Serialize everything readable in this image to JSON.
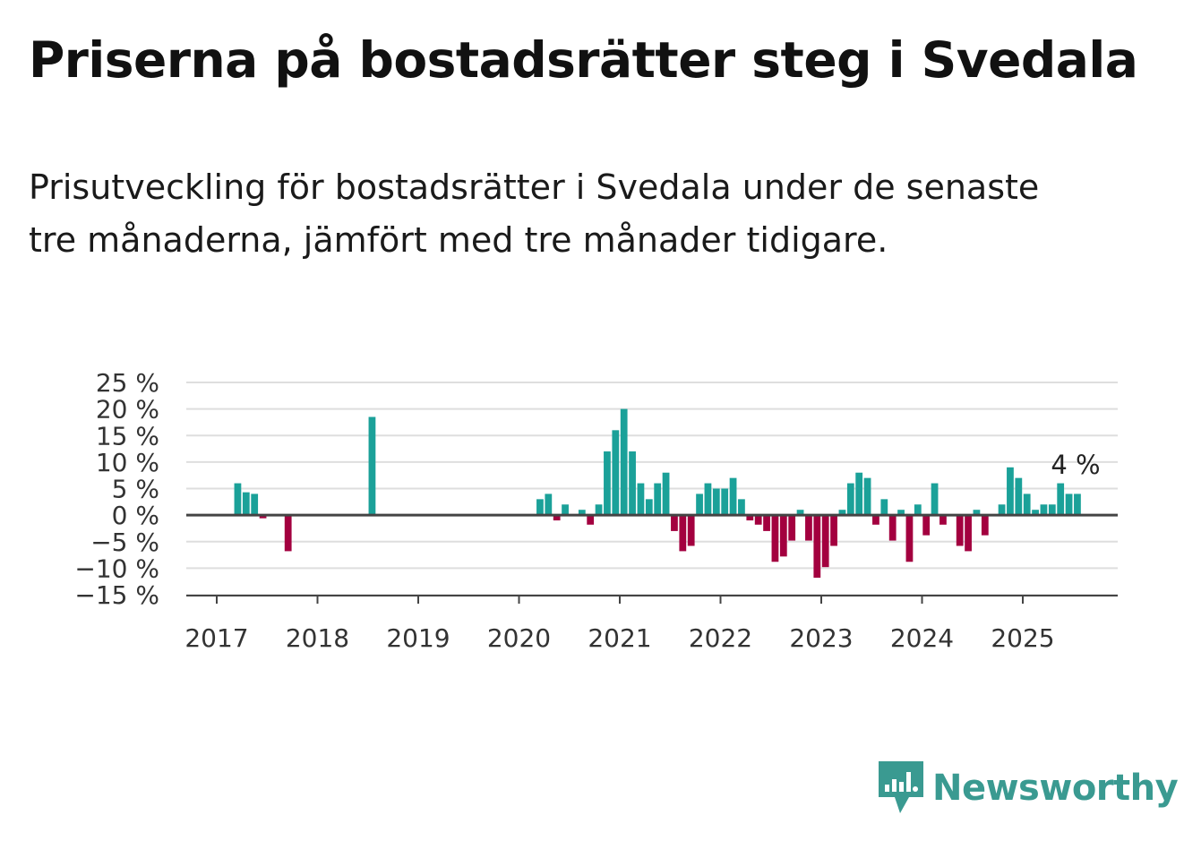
{
  "title": "Priserna på bostadsrätter steg i Svedala",
  "subtitle": "Prisutveckling för bostadsrätter i Svedala under de senaste tre månaderna, jämfört med tre månader tidigare.",
  "brand": {
    "name": "Newsworthy",
    "color": "#3a9a91",
    "icon": "bar-chart-speech-bubble-icon"
  },
  "chart_data": {
    "type": "bar",
    "ylim": [
      -15,
      25
    ],
    "yticks": [
      -15,
      -10,
      -5,
      0,
      5,
      10,
      15,
      20,
      25
    ],
    "ytick_labels": [
      "−15 %",
      "−10 %",
      "−5 %",
      "0 %",
      "5 %",
      "10 %",
      "15 %",
      "20 %",
      "25 %"
    ],
    "xticks": [
      "2017",
      "2018",
      "2019",
      "2020",
      "2021",
      "2022",
      "2023",
      "2024",
      "2025"
    ],
    "grid": true,
    "colors": {
      "positive": "#1ba199",
      "negative": "#a3003f"
    },
    "annotation": {
      "label": "4 %",
      "date": "2025-07"
    },
    "series": [
      {
        "x": [
          "2017-01",
          "2017-02",
          "2017-03",
          "2017-04",
          "2017-05",
          "2017-06",
          "2017-07",
          "2017-08",
          "2017-09",
          "2017-10",
          "2017-11",
          "2017-12",
          "2018-01",
          "2018-02",
          "2018-03",
          "2018-04",
          "2018-05",
          "2018-06",
          "2018-07",
          "2018-08",
          "2018-09",
          "2018-10",
          "2018-11",
          "2018-12",
          "2019-01",
          "2019-02",
          "2019-03",
          "2019-04",
          "2019-05",
          "2019-06",
          "2019-07",
          "2019-08",
          "2019-09",
          "2019-10",
          "2019-11",
          "2019-12",
          "2020-01",
          "2020-02",
          "2020-03",
          "2020-04",
          "2020-05",
          "2020-06",
          "2020-07",
          "2020-08",
          "2020-09",
          "2020-10",
          "2020-11",
          "2020-12",
          "2021-01",
          "2021-02",
          "2021-03",
          "2021-04",
          "2021-05",
          "2021-06",
          "2021-07",
          "2021-08",
          "2021-09",
          "2021-10",
          "2021-11",
          "2021-12",
          "2022-01",
          "2022-02",
          "2022-03",
          "2022-04",
          "2022-05",
          "2022-06",
          "2022-07",
          "2022-08",
          "2022-09",
          "2022-10",
          "2022-11",
          "2022-12",
          "2023-01",
          "2023-02",
          "2023-03",
          "2023-04",
          "2023-05",
          "2023-06",
          "2023-07",
          "2023-08",
          "2023-09",
          "2023-10",
          "2023-11",
          "2023-12",
          "2024-01",
          "2024-02",
          "2024-03",
          "2024-04",
          "2024-05",
          "2024-06",
          "2024-07",
          "2024-08",
          "2024-09",
          "2024-10",
          "2024-11",
          "2024-12",
          "2025-01",
          "2025-02",
          "2025-03",
          "2025-04",
          "2025-05",
          "2025-06",
          "2025-07"
        ],
        "values": [
          null,
          null,
          6,
          4.3,
          4,
          -0.6,
          null,
          null,
          -6.8,
          null,
          null,
          null,
          null,
          null,
          null,
          null,
          null,
          null,
          18.5,
          null,
          null,
          null,
          null,
          null,
          null,
          null,
          null,
          null,
          null,
          null,
          null,
          null,
          null,
          null,
          null,
          null,
          null,
          null,
          3,
          4,
          -1,
          2,
          null,
          1,
          -1.8,
          2,
          12,
          16,
          20,
          12,
          6,
          3,
          6,
          8,
          -3,
          -6.8,
          -5.8,
          4,
          6,
          5,
          5,
          7,
          3,
          -1,
          -1.8,
          -3,
          -8.8,
          -7.8,
          -4.8,
          1,
          -4.8,
          -11.8,
          -9.8,
          -5.8,
          1,
          6,
          8,
          7,
          -1.8,
          3,
          -4.8,
          1,
          -8.8,
          2,
          -3.8,
          6,
          -1.8,
          null,
          -5.8,
          -6.8,
          1,
          -3.8,
          null,
          2,
          9,
          7,
          4,
          1,
          2,
          2,
          6,
          4,
          4
        ]
      }
    ]
  }
}
